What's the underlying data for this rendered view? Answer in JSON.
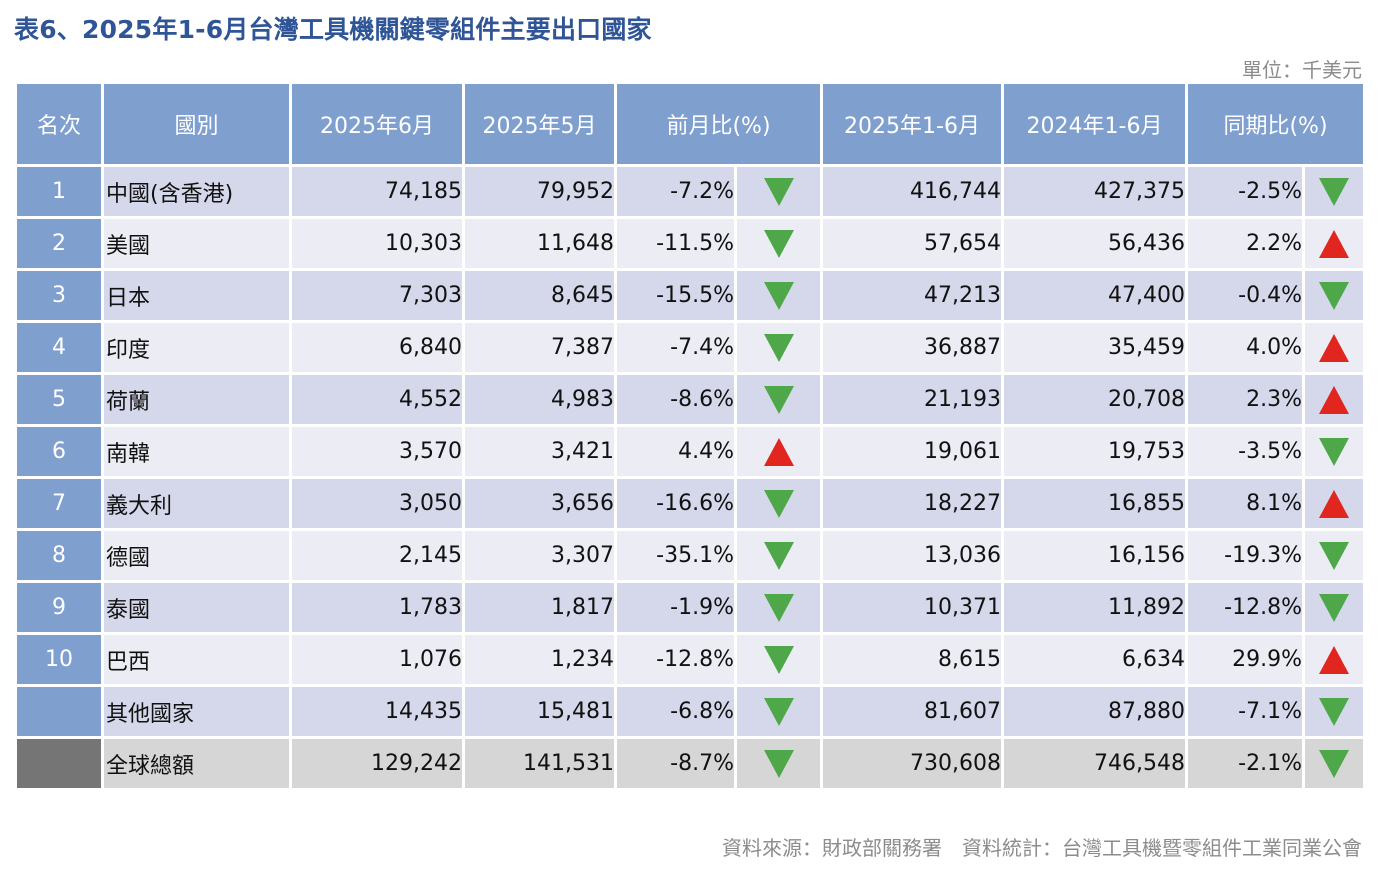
{
  "title": "表6、2025年1-6月台灣工具機關鍵零組件主要出口國家",
  "unit": "單位：千美元",
  "source": "資料來源：財政部關務署　資料統計：台灣工具機暨零組件工業同業公會",
  "colors": {
    "header": "#7f9fcf",
    "row_odd": "#d5d8ea",
    "row_even": "#ecedf4",
    "total": "#d6d6d6",
    "up": "#e0261e",
    "down": "#4ea84a"
  },
  "headers": [
    "名次",
    "國別",
    "2025年6月",
    "2025年5月",
    "前月比(%)",
    "2025年1-6月",
    "2024年1-6月",
    "同期比(%)"
  ],
  "rows": [
    {
      "rank": "1",
      "country": "中國(含香港)",
      "jun2025": "74,185",
      "may2025": "79,952",
      "mom": "-7.2%",
      "mom_dir": "down",
      "h1_2025": "416,744",
      "h1_2024": "427,375",
      "yoy": "-2.5%",
      "yoy_dir": "down"
    },
    {
      "rank": "2",
      "country": "美國",
      "jun2025": "10,303",
      "may2025": "11,648",
      "mom": "-11.5%",
      "mom_dir": "down",
      "h1_2025": "57,654",
      "h1_2024": "56,436",
      "yoy": "2.2%",
      "yoy_dir": "up"
    },
    {
      "rank": "3",
      "country": "日本",
      "jun2025": "7,303",
      "may2025": "8,645",
      "mom": "-15.5%",
      "mom_dir": "down",
      "h1_2025": "47,213",
      "h1_2024": "47,400",
      "yoy": "-0.4%",
      "yoy_dir": "down"
    },
    {
      "rank": "4",
      "country": "印度",
      "jun2025": "6,840",
      "may2025": "7,387",
      "mom": "-7.4%",
      "mom_dir": "down",
      "h1_2025": "36,887",
      "h1_2024": "35,459",
      "yoy": "4.0%",
      "yoy_dir": "up"
    },
    {
      "rank": "5",
      "country": "荷蘭",
      "jun2025": "4,552",
      "may2025": "4,983",
      "mom": "-8.6%",
      "mom_dir": "down",
      "h1_2025": "21,193",
      "h1_2024": "20,708",
      "yoy": "2.3%",
      "yoy_dir": "up"
    },
    {
      "rank": "6",
      "country": "南韓",
      "jun2025": "3,570",
      "may2025": "3,421",
      "mom": "4.4%",
      "mom_dir": "up",
      "h1_2025": "19,061",
      "h1_2024": "19,753",
      "yoy": "-3.5%",
      "yoy_dir": "down"
    },
    {
      "rank": "7",
      "country": "義大利",
      "jun2025": "3,050",
      "may2025": "3,656",
      "mom": "-16.6%",
      "mom_dir": "down",
      "h1_2025": "18,227",
      "h1_2024": "16,855",
      "yoy": "8.1%",
      "yoy_dir": "up"
    },
    {
      "rank": "8",
      "country": "德國",
      "jun2025": "2,145",
      "may2025": "3,307",
      "mom": "-35.1%",
      "mom_dir": "down",
      "h1_2025": "13,036",
      "h1_2024": "16,156",
      "yoy": "-19.3%",
      "yoy_dir": "down"
    },
    {
      "rank": "9",
      "country": "泰國",
      "jun2025": "1,783",
      "may2025": "1,817",
      "mom": "-1.9%",
      "mom_dir": "down",
      "h1_2025": "10,371",
      "h1_2024": "11,892",
      "yoy": "-12.8%",
      "yoy_dir": "down"
    },
    {
      "rank": "10",
      "country": "巴西",
      "jun2025": "1,076",
      "may2025": "1,234",
      "mom": "-12.8%",
      "mom_dir": "down",
      "h1_2025": "8,615",
      "h1_2024": "6,634",
      "yoy": "29.9%",
      "yoy_dir": "up"
    },
    {
      "rank": "",
      "country": "其他國家",
      "jun2025": "14,435",
      "may2025": "15,481",
      "mom": "-6.8%",
      "mom_dir": "down",
      "h1_2025": "81,607",
      "h1_2024": "87,880",
      "yoy": "-7.1%",
      "yoy_dir": "down"
    },
    {
      "rank": "",
      "country": "全球總額",
      "jun2025": "129,242",
      "may2025": "141,531",
      "mom": "-8.7%",
      "mom_dir": "down",
      "h1_2025": "730,608",
      "h1_2024": "746,548",
      "yoy": "-2.1%",
      "yoy_dir": "down",
      "is_total": true
    }
  ]
}
